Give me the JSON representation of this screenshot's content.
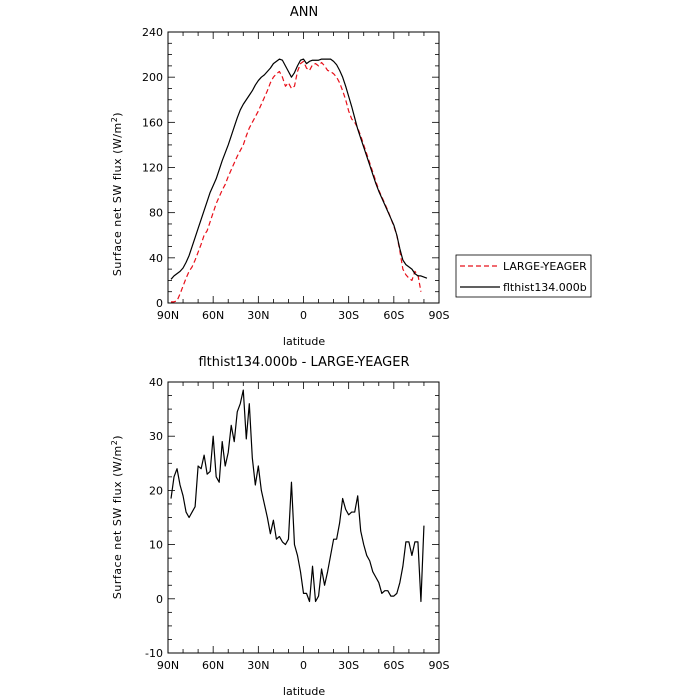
{
  "chart_data": [
    {
      "type": "line",
      "title": "ANN",
      "xlabel": "latitude",
      "ylabel": "Surface net SW flux (W/m²)",
      "xlim": [
        90,
        -90
      ],
      "ylim": [
        0,
        240
      ],
      "xticks": [
        {
          "value": 90,
          "label": "90N"
        },
        {
          "value": 60,
          "label": "60N"
        },
        {
          "value": 30,
          "label": "30N"
        },
        {
          "value": 0,
          "label": "0"
        },
        {
          "value": -30,
          "label": "30S"
        },
        {
          "value": -60,
          "label": "60S"
        },
        {
          "value": -90,
          "label": "90S"
        }
      ],
      "yticks": [
        0,
        40,
        80,
        120,
        160,
        200,
        240
      ],
      "legend_position": "right",
      "series": [
        {
          "name": "LARGE-YEAGER",
          "color": "#e8101a",
          "dash": "dashed",
          "points": [
            [
              88,
              1
            ],
            [
              86,
              1
            ],
            [
              84,
              2
            ],
            [
              82,
              8
            ],
            [
              80,
              15
            ],
            [
              78,
              22
            ],
            [
              76,
              28
            ],
            [
              74,
              32
            ],
            [
              72,
              38
            ],
            [
              70,
              45
            ],
            [
              68,
              52
            ],
            [
              66,
              60
            ],
            [
              64,
              64
            ],
            [
              62,
              72
            ],
            [
              60,
              80
            ],
            [
              58,
              88
            ],
            [
              56,
              94
            ],
            [
              54,
              100
            ],
            [
              52,
              105
            ],
            [
              50,
              112
            ],
            [
              48,
              118
            ],
            [
              46,
              124
            ],
            [
              44,
              130
            ],
            [
              42,
              135
            ],
            [
              40,
              140
            ],
            [
              38,
              148
            ],
            [
              36,
              155
            ],
            [
              34,
              160
            ],
            [
              32,
              165
            ],
            [
              30,
              170
            ],
            [
              28,
              176
            ],
            [
              26,
              182
            ],
            [
              24,
              188
            ],
            [
              22,
              195
            ],
            [
              20,
              200
            ],
            [
              18,
              203
            ],
            [
              16,
              205
            ],
            [
              14,
              200
            ],
            [
              12,
              192
            ],
            [
              10,
              195
            ],
            [
              8,
              190
            ],
            [
              6,
              192
            ],
            [
              4,
              205
            ],
            [
              2,
              212
            ],
            [
              0,
              214
            ],
            [
              -2,
              208
            ],
            [
              -4,
              206
            ],
            [
              -6,
              211
            ],
            [
              -8,
              212
            ],
            [
              -10,
              210
            ],
            [
              -12,
              213
            ],
            [
              -14,
              210
            ],
            [
              -16,
              206
            ],
            [
              -18,
              205
            ],
            [
              -20,
              203
            ],
            [
              -22,
              200
            ],
            [
              -24,
              195
            ],
            [
              -26,
              188
            ],
            [
              -28,
              180
            ],
            [
              -30,
              170
            ],
            [
              -32,
              163
            ],
            [
              -34,
              160
            ],
            [
              -36,
              155
            ],
            [
              -38,
              148
            ],
            [
              -40,
              140
            ],
            [
              -42,
              132
            ],
            [
              -44,
              124
            ],
            [
              -46,
              116
            ],
            [
              -48,
              108
            ],
            [
              -50,
              100
            ],
            [
              -52,
              94
            ],
            [
              -54,
              88
            ],
            [
              -56,
              82
            ],
            [
              -58,
              75
            ],
            [
              -60,
              68
            ],
            [
              -62,
              60
            ],
            [
              -64,
              46
            ],
            [
              -66,
              30
            ],
            [
              -68,
              25
            ],
            [
              -70,
              22
            ],
            [
              -72,
              20
            ],
            [
              -74,
              28
            ],
            [
              -76,
              25
            ],
            [
              -78,
              10
            ]
          ]
        },
        {
          "name": "flthist134.000b",
          "color": "#000000",
          "dash": "solid",
          "points": [
            [
              88,
              21
            ],
            [
              86,
              24
            ],
            [
              84,
              26
            ],
            [
              82,
              28
            ],
            [
              80,
              31
            ],
            [
              78,
              36
            ],
            [
              76,
              42
            ],
            [
              74,
              50
            ],
            [
              72,
              58
            ],
            [
              70,
              66
            ],
            [
              68,
              74
            ],
            [
              66,
              82
            ],
            [
              64,
              90
            ],
            [
              62,
              98
            ],
            [
              60,
              104
            ],
            [
              58,
              110
            ],
            [
              56,
              118
            ],
            [
              54,
              126
            ],
            [
              52,
              133
            ],
            [
              50,
              140
            ],
            [
              48,
              148
            ],
            [
              46,
              156
            ],
            [
              44,
              164
            ],
            [
              42,
              171
            ],
            [
              40,
              176
            ],
            [
              38,
              180
            ],
            [
              36,
              184
            ],
            [
              34,
              188
            ],
            [
              32,
              193
            ],
            [
              30,
              197
            ],
            [
              28,
              200
            ],
            [
              26,
              202
            ],
            [
              24,
              205
            ],
            [
              22,
              208
            ],
            [
              20,
              212
            ],
            [
              18,
              214
            ],
            [
              16,
              216
            ],
            [
              14,
              215
            ],
            [
              12,
              210
            ],
            [
              10,
              205
            ],
            [
              8,
              200
            ],
            [
              6,
              204
            ],
            [
              4,
              210
            ],
            [
              2,
              215
            ],
            [
              0,
              216
            ],
            [
              -2,
              212
            ],
            [
              -4,
              214
            ],
            [
              -6,
              215
            ],
            [
              -8,
              215
            ],
            [
              -10,
              215
            ],
            [
              -12,
              216
            ],
            [
              -14,
              216
            ],
            [
              -16,
              216
            ],
            [
              -18,
              216
            ],
            [
              -20,
              214
            ],
            [
              -22,
              211
            ],
            [
              -24,
              206
            ],
            [
              -26,
              200
            ],
            [
              -28,
              192
            ],
            [
              -30,
              183
            ],
            [
              -32,
              174
            ],
            [
              -34,
              164
            ],
            [
              -36,
              154
            ],
            [
              -38,
              146
            ],
            [
              -40,
              138
            ],
            [
              -42,
              130
            ],
            [
              -44,
              122
            ],
            [
              -46,
              114
            ],
            [
              -48,
              106
            ],
            [
              -50,
              99
            ],
            [
              -52,
              93
            ],
            [
              -54,
              87
            ],
            [
              -56,
              81
            ],
            [
              -58,
              75
            ],
            [
              -60,
              69
            ],
            [
              -62,
              60
            ],
            [
              -64,
              48
            ],
            [
              -66,
              38
            ],
            [
              -68,
              34
            ],
            [
              -70,
              32
            ],
            [
              -72,
              30
            ],
            [
              -74,
              26
            ],
            [
              -76,
              24
            ],
            [
              -78,
              24
            ],
            [
              -80,
              23
            ],
            [
              -82,
              22
            ]
          ]
        }
      ]
    },
    {
      "type": "line",
      "title": "flthist134.000b - LARGE-YEAGER",
      "xlabel": "latitude",
      "ylabel": "Surface net SW flux (W/m²)",
      "xlim": [
        90,
        -90
      ],
      "ylim": [
        -10,
        40
      ],
      "xticks": [
        {
          "value": 90,
          "label": "90N"
        },
        {
          "value": 60,
          "label": "60N"
        },
        {
          "value": 30,
          "label": "30N"
        },
        {
          "value": 0,
          "label": "0"
        },
        {
          "value": -30,
          "label": "30S"
        },
        {
          "value": -60,
          "label": "60S"
        },
        {
          "value": -90,
          "label": "90S"
        }
      ],
      "yticks": [
        -10,
        0,
        10,
        20,
        30,
        40
      ],
      "series": [
        {
          "color": "#000000",
          "dash": "solid",
          "points": [
            [
              88,
              18.5
            ],
            [
              86,
              22.5
            ],
            [
              84,
              24
            ],
            [
              82,
              21
            ],
            [
              80,
              19
            ],
            [
              78,
              16
            ],
            [
              76,
              15
            ],
            [
              74,
              16
            ],
            [
              72,
              17
            ],
            [
              70,
              24.5
            ],
            [
              68,
              24
            ],
            [
              66,
              26.5
            ],
            [
              64,
              23
            ],
            [
              62,
              23.5
            ],
            [
              60,
              30
            ],
            [
              58,
              22.5
            ],
            [
              56,
              21.5
            ],
            [
              54,
              29
            ],
            [
              52,
              24.5
            ],
            [
              50,
              27
            ],
            [
              48,
              32
            ],
            [
              46,
              29
            ],
            [
              44,
              34.5
            ],
            [
              42,
              36
            ],
            [
              40,
              38.5
            ],
            [
              38,
              29.5
            ],
            [
              36,
              36
            ],
            [
              34,
              26
            ],
            [
              32,
              21
            ],
            [
              30,
              24.5
            ],
            [
              28,
              20
            ],
            [
              26,
              17.5
            ],
            [
              24,
              15
            ],
            [
              22,
              12
            ],
            [
              20,
              14.5
            ],
            [
              18,
              11
            ],
            [
              16,
              11.5
            ],
            [
              14,
              10.5
            ],
            [
              12,
              10
            ],
            [
              10,
              11
            ],
            [
              8,
              21.5
            ],
            [
              6,
              10
            ],
            [
              4,
              8
            ],
            [
              2,
              5
            ],
            [
              0,
              1
            ],
            [
              -2,
              1
            ],
            [
              -4,
              -0.5
            ],
            [
              -6,
              6
            ],
            [
              -8,
              -0.5
            ],
            [
              -10,
              0.5
            ],
            [
              -12,
              5.5
            ],
            [
              -14,
              2.5
            ],
            [
              -16,
              5
            ],
            [
              -18,
              8
            ],
            [
              -20,
              11
            ],
            [
              -22,
              11
            ],
            [
              -24,
              14
            ],
            [
              -26,
              18.5
            ],
            [
              -28,
              16.5
            ],
            [
              -30,
              15.5
            ],
            [
              -32,
              16
            ],
            [
              -34,
              16
            ],
            [
              -36,
              19
            ],
            [
              -38,
              12.5
            ],
            [
              -40,
              10
            ],
            [
              -42,
              8
            ],
            [
              -44,
              7
            ],
            [
              -46,
              5
            ],
            [
              -48,
              4
            ],
            [
              -50,
              3
            ],
            [
              -52,
              1
            ],
            [
              -54,
              1.5
            ],
            [
              -56,
              1.5
            ],
            [
              -58,
              0.5
            ],
            [
              -60,
              0.5
            ],
            [
              -62,
              1
            ],
            [
              -64,
              3
            ],
            [
              -66,
              6
            ],
            [
              -68,
              10.5
            ],
            [
              -70,
              10.5
            ],
            [
              -72,
              8
            ],
            [
              -74,
              10.5
            ],
            [
              -76,
              10.5
            ],
            [
              -78,
              -0.5
            ],
            [
              -80,
              13.5
            ]
          ]
        }
      ]
    }
  ]
}
